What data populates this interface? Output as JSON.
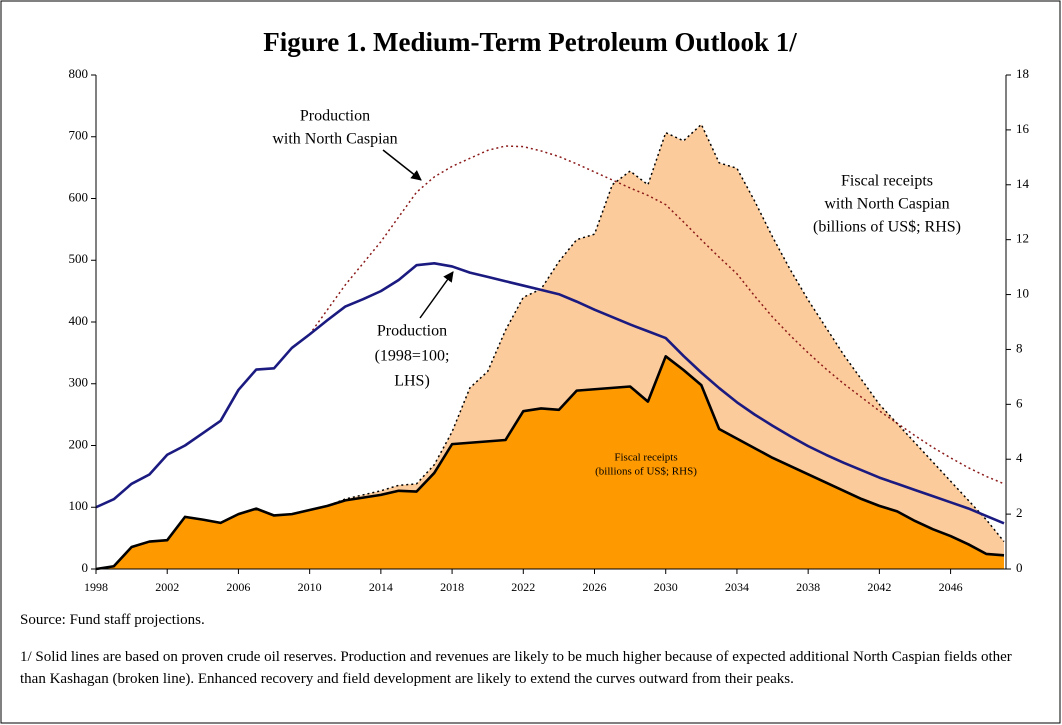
{
  "chart_data": {
    "type": "area_line",
    "title": "Figure 1. Medium-Term Petroleum Outlook 1/",
    "x": [
      1998,
      1999,
      2000,
      2001,
      2002,
      2003,
      2004,
      2005,
      2006,
      2007,
      2008,
      2009,
      2010,
      2011,
      2012,
      2013,
      2014,
      2015,
      2016,
      2017,
      2018,
      2019,
      2020,
      2021,
      2022,
      2023,
      2024,
      2025,
      2026,
      2027,
      2028,
      2029,
      2030,
      2031,
      2032,
      2033,
      2034,
      2035,
      2036,
      2037,
      2038,
      2039,
      2040,
      2041,
      2042,
      2043,
      2044,
      2045,
      2046,
      2047,
      2048,
      2049
    ],
    "xlim": [
      1998,
      2049
    ],
    "xticks": [
      1998,
      2002,
      2006,
      2010,
      2014,
      2018,
      2022,
      2026,
      2030,
      2034,
      2038,
      2042,
      2046
    ],
    "ylim": [
      0,
      800
    ],
    "yticks": [
      0,
      100,
      200,
      300,
      400,
      500,
      600,
      700,
      800
    ],
    "y2lim": [
      0,
      18
    ],
    "y2ticks": [
      0,
      2,
      4,
      6,
      8,
      10,
      12,
      14,
      16,
      18
    ],
    "series": [
      {
        "name": [
          "Fiscal receipts",
          "with North Caspian",
          "(billions of US$; RHS)"
        ],
        "axis": "y2",
        "color": "#fccb9b",
        "line_color": "#000000",
        "style": "dotted",
        "kind": "area",
        "values": [
          0,
          0.1,
          0.8,
          1.0,
          1.05,
          1.9,
          1.8,
          1.68,
          2.0,
          2.2,
          1.95,
          2.0,
          2.15,
          2.3,
          2.55,
          2.7,
          2.85,
          3.05,
          3.1,
          3.8,
          5.0,
          6.6,
          7.2,
          8.7,
          9.9,
          10.2,
          11.2,
          12.0,
          12.2,
          14.0,
          14.5,
          14.0,
          15.9,
          15.6,
          16.2,
          14.8,
          14.6,
          13.4,
          12.1,
          10.9,
          9.8,
          8.8,
          7.8,
          6.9,
          6.0,
          5.3,
          4.6,
          3.9,
          3.2,
          2.5,
          1.8,
          1.0
        ]
      },
      {
        "name": [
          "Fiscal receipts",
          "(billions of US$; RHS)"
        ],
        "axis": "y2",
        "color": "#ff9900",
        "line_color": "#000000",
        "style": "solid",
        "kind": "area",
        "values": [
          0,
          0.1,
          0.8,
          1.0,
          1.05,
          1.9,
          1.8,
          1.68,
          2.0,
          2.2,
          1.95,
          2.0,
          2.15,
          2.3,
          2.5,
          2.6,
          2.7,
          2.85,
          2.82,
          3.5,
          4.55,
          4.6,
          4.65,
          4.7,
          5.75,
          5.85,
          5.8,
          6.5,
          6.55,
          6.6,
          6.65,
          6.1,
          7.75,
          7.25,
          6.7,
          5.1,
          4.75,
          4.4,
          4.05,
          3.75,
          3.45,
          3.15,
          2.85,
          2.55,
          2.3,
          2.1,
          1.75,
          1.45,
          1.2,
          0.9,
          0.55,
          0.5
        ]
      },
      {
        "name": [
          "Production",
          "with North Caspian"
        ],
        "axis": "y",
        "color": "#8b1a1a",
        "style": "dotted",
        "kind": "line",
        "values": [
          null,
          null,
          null,
          null,
          null,
          null,
          null,
          null,
          null,
          null,
          null,
          null,
          380,
          420,
          460,
          495,
          530,
          570,
          610,
          635,
          652,
          665,
          678,
          685,
          684,
          677,
          668,
          656,
          643,
          630,
          617,
          605,
          590,
          562,
          533,
          505,
          478,
          442,
          408,
          378,
          350,
          324,
          300,
          278,
          256,
          236,
          216,
          197,
          180,
          164,
          150,
          138
        ]
      },
      {
        "name": [
          "Production",
          "(1998=100;",
          "LHS)"
        ],
        "axis": "y",
        "color": "#1a1a80",
        "style": "solid",
        "kind": "line",
        "values": [
          100,
          113,
          138,
          153,
          185,
          200,
          220,
          240,
          290,
          323,
          325,
          358,
          380,
          403,
          425,
          437,
          450,
          468,
          492,
          495,
          490,
          480,
          473,
          466,
          459,
          452,
          445,
          433,
          420,
          408,
          396,
          385,
          374,
          345,
          318,
          293,
          270,
          250,
          232,
          215,
          199,
          185,
          172,
          160,
          148,
          138,
          128,
          118,
          108,
          98,
          86,
          74
        ]
      }
    ],
    "source": "Source: Fund staff projections.",
    "footnote": "1/ Solid lines are based on proven crude oil reserves. Production and revenues are likely to be much higher because of expected additional North Caspian fields other than Kashagan (broken line). Enhanced recovery and field development are likely to extend the curves outward from their peaks."
  }
}
